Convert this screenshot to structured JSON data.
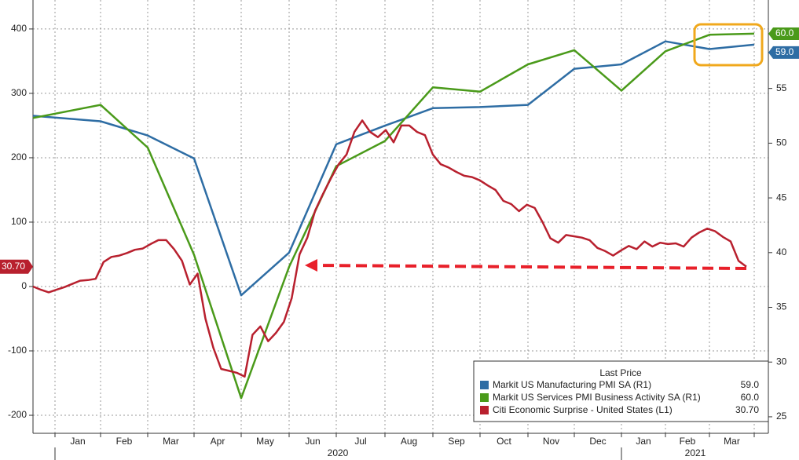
{
  "chart_data": {
    "type": "line",
    "x_labels": [
      "Jan",
      "Feb",
      "Mar",
      "Apr",
      "May",
      "Jun",
      "Jul",
      "Aug",
      "Sep",
      "Oct",
      "Nov",
      "Dec",
      "Jan",
      "Feb",
      "Mar"
    ],
    "year_labels": [
      "2020",
      "2021"
    ],
    "ylim": [
      -228,
      445
    ],
    "yticks": [
      -200,
      -100,
      0,
      100,
      200,
      300,
      400
    ],
    "y2lim": [
      23.49,
      63.08
    ],
    "y2ticks": [
      25,
      30,
      35,
      40,
      45,
      50,
      55
    ],
    "grid": true,
    "legend_title": "Last Price",
    "legend_position": "lower right",
    "series": [
      {
        "name": "Markit US Manufacturing PMI SA  (R1)",
        "color": "#2e6da4",
        "axis": "y2",
        "last_label": "59.0",
        "values": [
          52.5,
          52.0,
          50.7,
          48.6,
          36.1,
          40.0,
          49.9,
          51.6,
          53.2,
          53.3,
          53.5,
          56.8,
          57.2,
          59.3,
          58.6,
          59.0
        ]
      },
      {
        "name": "Markit US Services PMI Business Activity SA  (R1)",
        "color": "#4a9a1a",
        "axis": "y2",
        "last_label": "60.0",
        "values": [
          52.3,
          53.5,
          49.6,
          39.8,
          26.7,
          38.7,
          47.9,
          50.2,
          55.1,
          54.7,
          57.2,
          58.5,
          54.8,
          58.4,
          59.9,
          60.0
        ]
      },
      {
        "name": "Citi Economic Surprise - United States  (L1)",
        "color": "#b8202e",
        "axis": "y",
        "last_label": "30.70",
        "values": [
          0,
          -5,
          -9,
          -5,
          -1,
          4,
          9,
          10,
          12,
          38,
          46,
          48,
          52,
          57,
          59,
          66,
          72,
          72,
          58,
          40,
          3,
          20,
          -50,
          -95,
          -128,
          -131,
          -134,
          -140,
          -75,
          -62,
          -85,
          -72,
          -55,
          -18,
          50,
          76,
          118,
          144,
          168,
          190,
          205,
          240,
          258,
          240,
          232,
          243,
          224,
          250,
          250,
          240,
          235,
          205,
          190,
          185,
          178,
          172,
          170,
          165,
          157,
          150,
          133,
          128,
          117,
          127,
          122,
          100,
          75,
          68,
          80,
          78,
          76,
          72,
          60,
          55,
          48,
          56,
          63,
          58,
          70,
          62,
          68,
          66,
          67,
          62,
          76,
          84,
          90,
          86,
          77,
          70,
          40,
          30.7
        ]
      }
    ]
  }
}
